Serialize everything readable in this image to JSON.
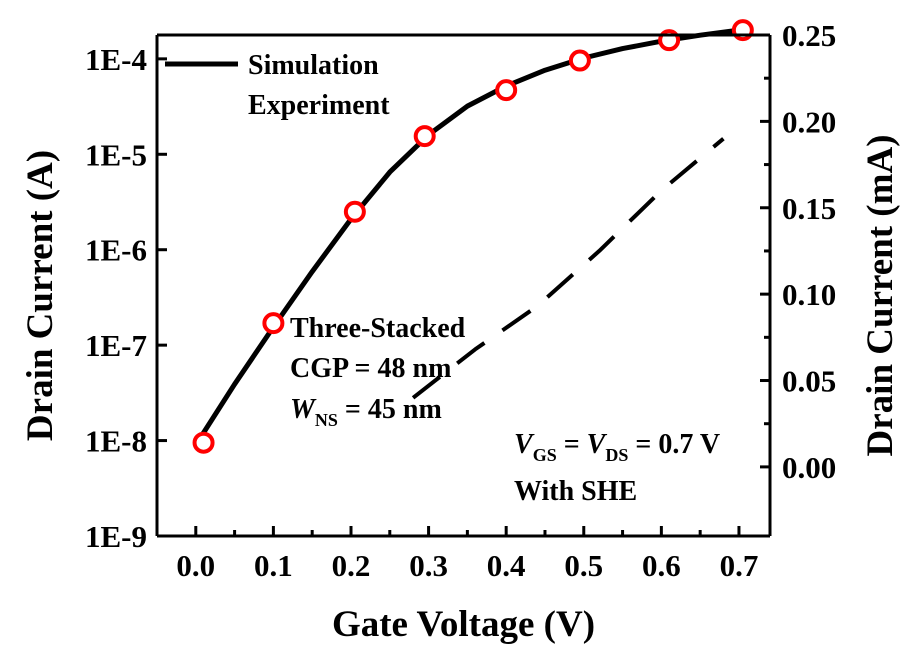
{
  "chart_data": {
    "type": "line",
    "xlabel": "Gate Voltage (V)",
    "ylabel_left": "Drain Current (A)",
    "ylabel_right": "Drain Current (mA)",
    "xlim": [
      -0.05,
      0.74
    ],
    "ylim_left_log10": [
      -9,
      -3.75
    ],
    "ylim_right": [
      -0.04,
      0.25
    ],
    "left_scale": "log",
    "x_ticks": [
      "0.0",
      "0.1",
      "0.2",
      "0.3",
      "0.4",
      "0.5",
      "0.6",
      "0.7"
    ],
    "x_tick_values": [
      0.0,
      0.1,
      0.2,
      0.3,
      0.4,
      0.5,
      0.6,
      0.7
    ],
    "left_ticks": [
      "1E-9",
      "1E-8",
      "1E-7",
      "1E-6",
      "1E-5",
      "1E-4"
    ],
    "left_tick_values": [
      1e-09,
      1e-08,
      1e-07,
      1e-06,
      1e-05,
      0.0001
    ],
    "right_ticks": [
      "0.00",
      "0.05",
      "0.10",
      "0.15",
      "0.20",
      "0.25"
    ],
    "right_tick_values": [
      0.0,
      0.05,
      0.1,
      0.15,
      0.2,
      0.25
    ],
    "legend": [
      "Simulation",
      "Experiment"
    ],
    "legend_position": "top-left",
    "series": [
      {
        "name": "Simulation",
        "axis": "left",
        "style": "solid line",
        "x": [
          0.0,
          0.05,
          0.1,
          0.15,
          0.2,
          0.25,
          0.3,
          0.35,
          0.4,
          0.45,
          0.5,
          0.55,
          0.6,
          0.65,
          0.7
        ],
        "y": [
          9e-09,
          3.9e-08,
          1.55e-07,
          5.9e-07,
          2.1e-06,
          6.5e-06,
          1.6e-05,
          3.2e-05,
          5.2e-05,
          7.6e-05,
          0.000102,
          0.000128,
          0.000153,
          0.000177,
          0.0002
        ]
      },
      {
        "name": "Experiment",
        "axis": "left",
        "style": "open circle",
        "x": [
          0.01,
          0.1,
          0.205,
          0.295,
          0.4,
          0.495,
          0.61,
          0.705
        ],
        "y": [
          9.5e-09,
          1.7e-07,
          2.5e-06,
          1.55e-05,
          4.7e-05,
          9.6e-05,
          0.000157,
          0.0002
        ]
      },
      {
        "name": "",
        "axis": "right",
        "style": "dashed line",
        "x": [
          0.28,
          0.36,
          0.44,
          0.52,
          0.6,
          0.68
        ],
        "y": [
          0.04,
          0.068,
          0.093,
          0.125,
          0.16,
          0.19
        ]
      }
    ],
    "annotations": {
      "device": [
        "Three-Stacked",
        "CGP = 48 nm",
        "W_NS = 45 nm"
      ],
      "bias": "V_GS = V_DS = 0.7 V",
      "she": "With SHE"
    },
    "colors": {
      "line": "#000000",
      "marker": "#ff0000",
      "background": "#ffffff"
    },
    "grid": false
  },
  "texts": {
    "annot_line1": "Three-Stacked",
    "annot_line2": "CGP = 48 nm",
    "annot_w": "W",
    "annot_w_sub": "NS",
    "annot_w_rest": " = 45 nm",
    "bias_v1": "V",
    "bias_v1_sub": "GS",
    "bias_mid": " = ",
    "bias_v2": "V",
    "bias_v2_sub": "DS",
    "bias_rest": " = 0.7 V",
    "she": "With SHE"
  }
}
